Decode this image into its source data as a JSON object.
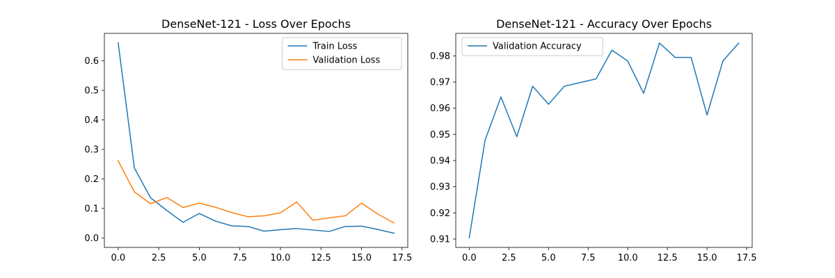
{
  "chart_data": [
    {
      "type": "line",
      "title": "DenseNet-121 - Loss Over Epochs",
      "xlabel": "",
      "ylabel": "",
      "xlim": [
        -0.85,
        17.85
      ],
      "ylim": [
        -0.032,
        0.693
      ],
      "xticks": [
        "0.0",
        "2.5",
        "5.0",
        "7.5",
        "10.0",
        "12.5",
        "15.0",
        "17.5"
      ],
      "yticks": [
        "0.0",
        "0.1",
        "0.2",
        "0.3",
        "0.4",
        "0.5",
        "0.6"
      ],
      "legend": "top-right",
      "grid": false,
      "x": [
        0,
        1,
        2,
        3,
        4,
        5,
        6,
        7,
        8,
        9,
        10,
        11,
        12,
        13,
        14,
        15,
        16,
        17
      ],
      "series": [
        {
          "name": "Train Loss",
          "color": "#1f77b4",
          "values": [
            0.661,
            0.237,
            0.136,
            0.093,
            0.053,
            0.083,
            0.057,
            0.041,
            0.039,
            0.023,
            0.028,
            0.032,
            0.027,
            0.022,
            0.039,
            0.04,
            0.029,
            0.016
          ]
        },
        {
          "name": "Validation Loss",
          "color": "#ff7f0e",
          "values": [
            0.261,
            0.156,
            0.116,
            0.137,
            0.103,
            0.118,
            0.104,
            0.086,
            0.072,
            0.075,
            0.085,
            0.122,
            0.06,
            0.068,
            0.075,
            0.118,
            0.081,
            0.051
          ]
        }
      ]
    },
    {
      "type": "line",
      "title": "DenseNet-121 - Accuracy Over Epochs",
      "xlabel": "",
      "ylabel": "",
      "xlim": [
        -0.85,
        17.85
      ],
      "ylim": [
        0.9068,
        0.9886
      ],
      "xticks": [
        "0.0",
        "2.5",
        "5.0",
        "7.5",
        "10.0",
        "12.5",
        "15.0",
        "17.5"
      ],
      "yticks": [
        "0.91",
        "0.92",
        "0.93",
        "0.94",
        "0.95",
        "0.96",
        "0.97",
        "0.98"
      ],
      "legend": "top-left",
      "grid": false,
      "x": [
        0,
        1,
        2,
        3,
        4,
        5,
        6,
        7,
        8,
        9,
        10,
        11,
        12,
        13,
        14,
        15,
        16,
        17
      ],
      "series": [
        {
          "name": "Validation Accuracy",
          "color": "#1f77b4",
          "values": [
            0.9105,
            0.9478,
            0.9643,
            0.9491,
            0.9684,
            0.9615,
            0.9684,
            0.9698,
            0.9712,
            0.9822,
            0.978,
            0.9657,
            0.9849,
            0.9794,
            0.9794,
            0.9574,
            0.978,
            0.9849
          ]
        }
      ]
    }
  ]
}
